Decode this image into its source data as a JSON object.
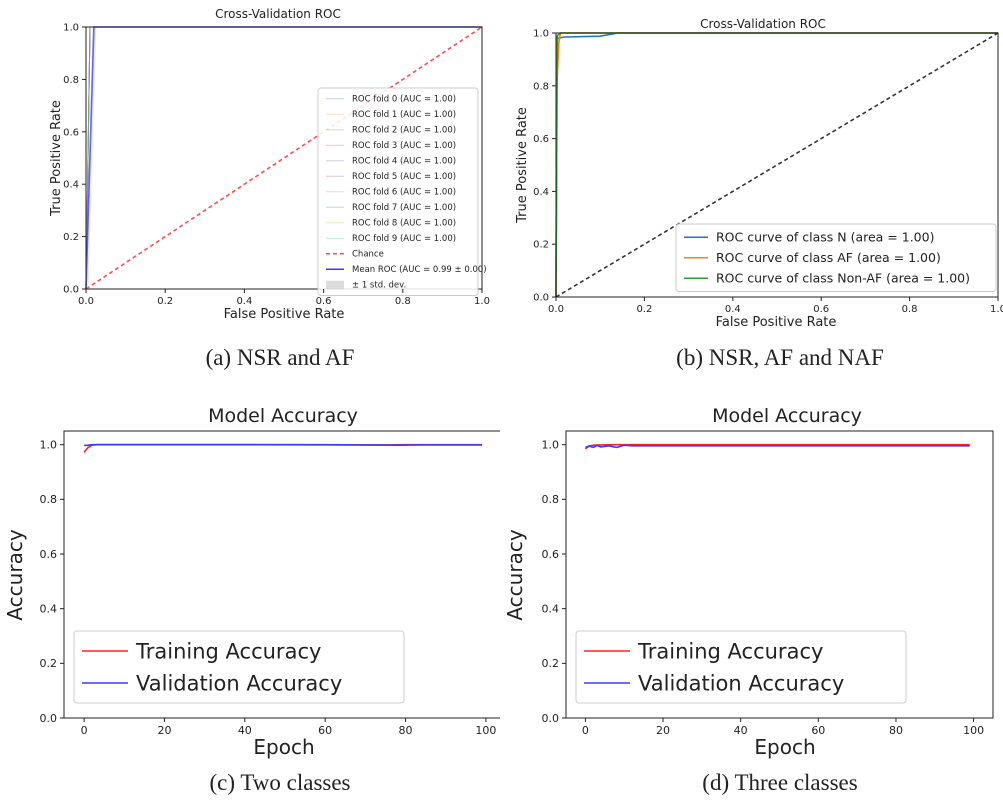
{
  "captions": {
    "a": "(a) NSR and AF",
    "b": "(b) NSR, AF and NAF",
    "c": "(c) Two classes",
    "d": "(d) Three classes"
  },
  "chart_data": [
    {
      "id": "a",
      "type": "line",
      "title": "Cross-Validation ROC",
      "xlabel": "False Positive Rate",
      "ylabel": "True Positive Rate",
      "xlim": [
        0,
        1
      ],
      "ylim": [
        0,
        1
      ],
      "xticks": [
        "0.0",
        "0.2",
        "0.4",
        "0.6",
        "0.8",
        "1.0"
      ],
      "yticks": [
        "0.0",
        "0.2",
        "0.4",
        "0.6",
        "0.8",
        "1.0"
      ],
      "grid": false,
      "legend_position": "lower-right",
      "series": [
        {
          "name": "ROC fold 0 (AUC = 1.00)",
          "color": "#4c72b0",
          "x": [
            0,
            0.01,
            1
          ],
          "y": [
            0,
            1,
            1
          ]
        },
        {
          "name": "ROC fold 1 (AUC = 1.00)",
          "color": "#ff9f40",
          "x": [
            0,
            0.01,
            1
          ],
          "y": [
            0,
            1,
            1
          ]
        },
        {
          "name": "ROC fold 2 (AUC = 1.00)",
          "color": "#55a868",
          "x": [
            0,
            0.01,
            1
          ],
          "y": [
            0,
            1,
            1
          ]
        },
        {
          "name": "ROC fold 3 (AUC = 1.00)",
          "color": "#d64a4a",
          "x": [
            0,
            0.01,
            1
          ],
          "y": [
            0,
            1,
            1
          ]
        },
        {
          "name": "ROC fold 4 (AUC = 1.00)",
          "color": "#9467bd",
          "x": [
            0,
            0.01,
            1
          ],
          "y": [
            0,
            1,
            1
          ]
        },
        {
          "name": "ROC fold 5 (AUC = 1.00)",
          "color": "#8c564b",
          "x": [
            0,
            0.01,
            1
          ],
          "y": [
            0,
            1,
            1
          ]
        },
        {
          "name": "ROC fold 6 (AUC = 1.00)",
          "color": "#e377c2",
          "x": [
            0,
            0.01,
            1
          ],
          "y": [
            0,
            1,
            1
          ]
        },
        {
          "name": "ROC fold 7 (AUC = 1.00)",
          "color": "#7f7f7f",
          "x": [
            0,
            0.01,
            1
          ],
          "y": [
            0,
            1,
            1
          ]
        },
        {
          "name": "ROC fold 8 (AUC = 1.00)",
          "color": "#bcbd22",
          "x": [
            0,
            0.01,
            1
          ],
          "y": [
            0,
            1,
            1
          ]
        },
        {
          "name": "ROC fold 9 (AUC = 1.00)",
          "color": "#17becf",
          "x": [
            0,
            0.01,
            1
          ],
          "y": [
            0,
            1,
            1
          ]
        },
        {
          "name": "Chance",
          "color": "#ff4d4d",
          "dashed": true,
          "x": [
            0,
            1
          ],
          "y": [
            0,
            1
          ]
        },
        {
          "name": "Mean ROC (AUC = 0.99 ± 0.00)",
          "color": "#3a3aff",
          "x": [
            0,
            0.02,
            1
          ],
          "y": [
            0,
            1,
            1
          ]
        },
        {
          "name": "± 1 std. dev.",
          "color": "#bbbbbb",
          "band": true,
          "x": [
            0,
            0.02,
            1
          ],
          "y": [
            0,
            1,
            1
          ]
        }
      ]
    },
    {
      "id": "b",
      "type": "line",
      "title": "Cross-Validation ROC",
      "xlabel": "False Positive Rate",
      "ylabel": "True Positive Rate",
      "xlim": [
        0,
        1
      ],
      "ylim": [
        0,
        1
      ],
      "xticks": [
        "0.0",
        "0.2",
        "0.4",
        "0.6",
        "0.8",
        "1.0"
      ],
      "yticks": [
        "0.0",
        "0.2",
        "0.4",
        "0.6",
        "0.8",
        "1.0"
      ],
      "grid": false,
      "legend_position": "lower-right",
      "series": [
        {
          "name": "ROC curve of class N (area = 1.00)",
          "color": "#1f77b4",
          "x": [
            0,
            0.002,
            0.02,
            0.1,
            0.14,
            1
          ],
          "y": [
            0,
            0.98,
            0.985,
            0.988,
            1,
            1
          ]
        },
        {
          "name": "ROC curve of class AF (area = 1.00)",
          "color": "#ff7f0e",
          "x": [
            0,
            0.002,
            0.006,
            0.01,
            1
          ],
          "y": [
            0,
            0.8,
            0.96,
            1,
            1
          ]
        },
        {
          "name": "ROC curve of class Non-AF (area = 1.00)",
          "color": "#2ca02c",
          "x": [
            0,
            0.003,
            0.01,
            1
          ],
          "y": [
            0,
            0.99,
            1,
            1
          ]
        },
        {
          "name": "",
          "color": "#333333",
          "dashed": true,
          "x": [
            0,
            1
          ],
          "y": [
            0,
            1
          ]
        }
      ]
    },
    {
      "id": "c",
      "type": "line",
      "title": "Model Accuracy",
      "xlabel": "Epoch",
      "ylabel": "Accuracy",
      "xlim": [
        -5,
        105
      ],
      "ylim": [
        0,
        1.05
      ],
      "xticks": [
        "0",
        "20",
        "40",
        "60",
        "80",
        "100"
      ],
      "yticks": [
        "0.0",
        "0.2",
        "0.4",
        "0.6",
        "0.8",
        "1.0"
      ],
      "grid": false,
      "legend_position": "lower-left",
      "series": [
        {
          "name": "Training Accuracy",
          "color": "#ff2020",
          "x": [
            0,
            1,
            2,
            3,
            10,
            40,
            76,
            80,
            99
          ],
          "y": [
            0.972,
            0.99,
            0.998,
            1.0,
            1.0,
            1.0,
            0.999,
            1.0,
            1.0
          ]
        },
        {
          "name": "Validation Accuracy",
          "color": "#3a3aff",
          "x": [
            0,
            1,
            2,
            5,
            20,
            60,
            78,
            84,
            99
          ],
          "y": [
            0.997,
            0.998,
            1.0,
            1.0,
            1.0,
            1.0,
            0.998,
            0.999,
            0.999
          ]
        }
      ]
    },
    {
      "id": "d",
      "type": "line",
      "title": "Model Accuracy",
      "xlabel": "Epoch",
      "ylabel": "Accuracy",
      "xlim": [
        -5,
        105
      ],
      "ylim": [
        0,
        1.05
      ],
      "xticks": [
        "0",
        "20",
        "40",
        "60",
        "80",
        "100"
      ],
      "yticks": [
        "0.0",
        "0.2",
        "0.4",
        "0.6",
        "0.8",
        "1.0"
      ],
      "grid": false,
      "legend_position": "lower-left",
      "series": [
        {
          "name": "Training Accuracy",
          "color": "#ff2020",
          "x": [
            0,
            1,
            2,
            4,
            8,
            12,
            20,
            40,
            60,
            99
          ],
          "y": [
            0.985,
            0.995,
            0.998,
            0.999,
            1.0,
            1.0,
            1.0,
            1.0,
            1.0,
            1.0
          ]
        },
        {
          "name": "Validation Accuracy",
          "color": "#3a3aff",
          "x": [
            0,
            1,
            2,
            3,
            4,
            6,
            8,
            10,
            12,
            30,
            60,
            99
          ],
          "y": [
            0.99,
            0.995,
            0.99,
            0.997,
            0.992,
            0.996,
            0.99,
            0.998,
            0.996,
            0.996,
            0.996,
            0.996
          ]
        }
      ]
    }
  ]
}
